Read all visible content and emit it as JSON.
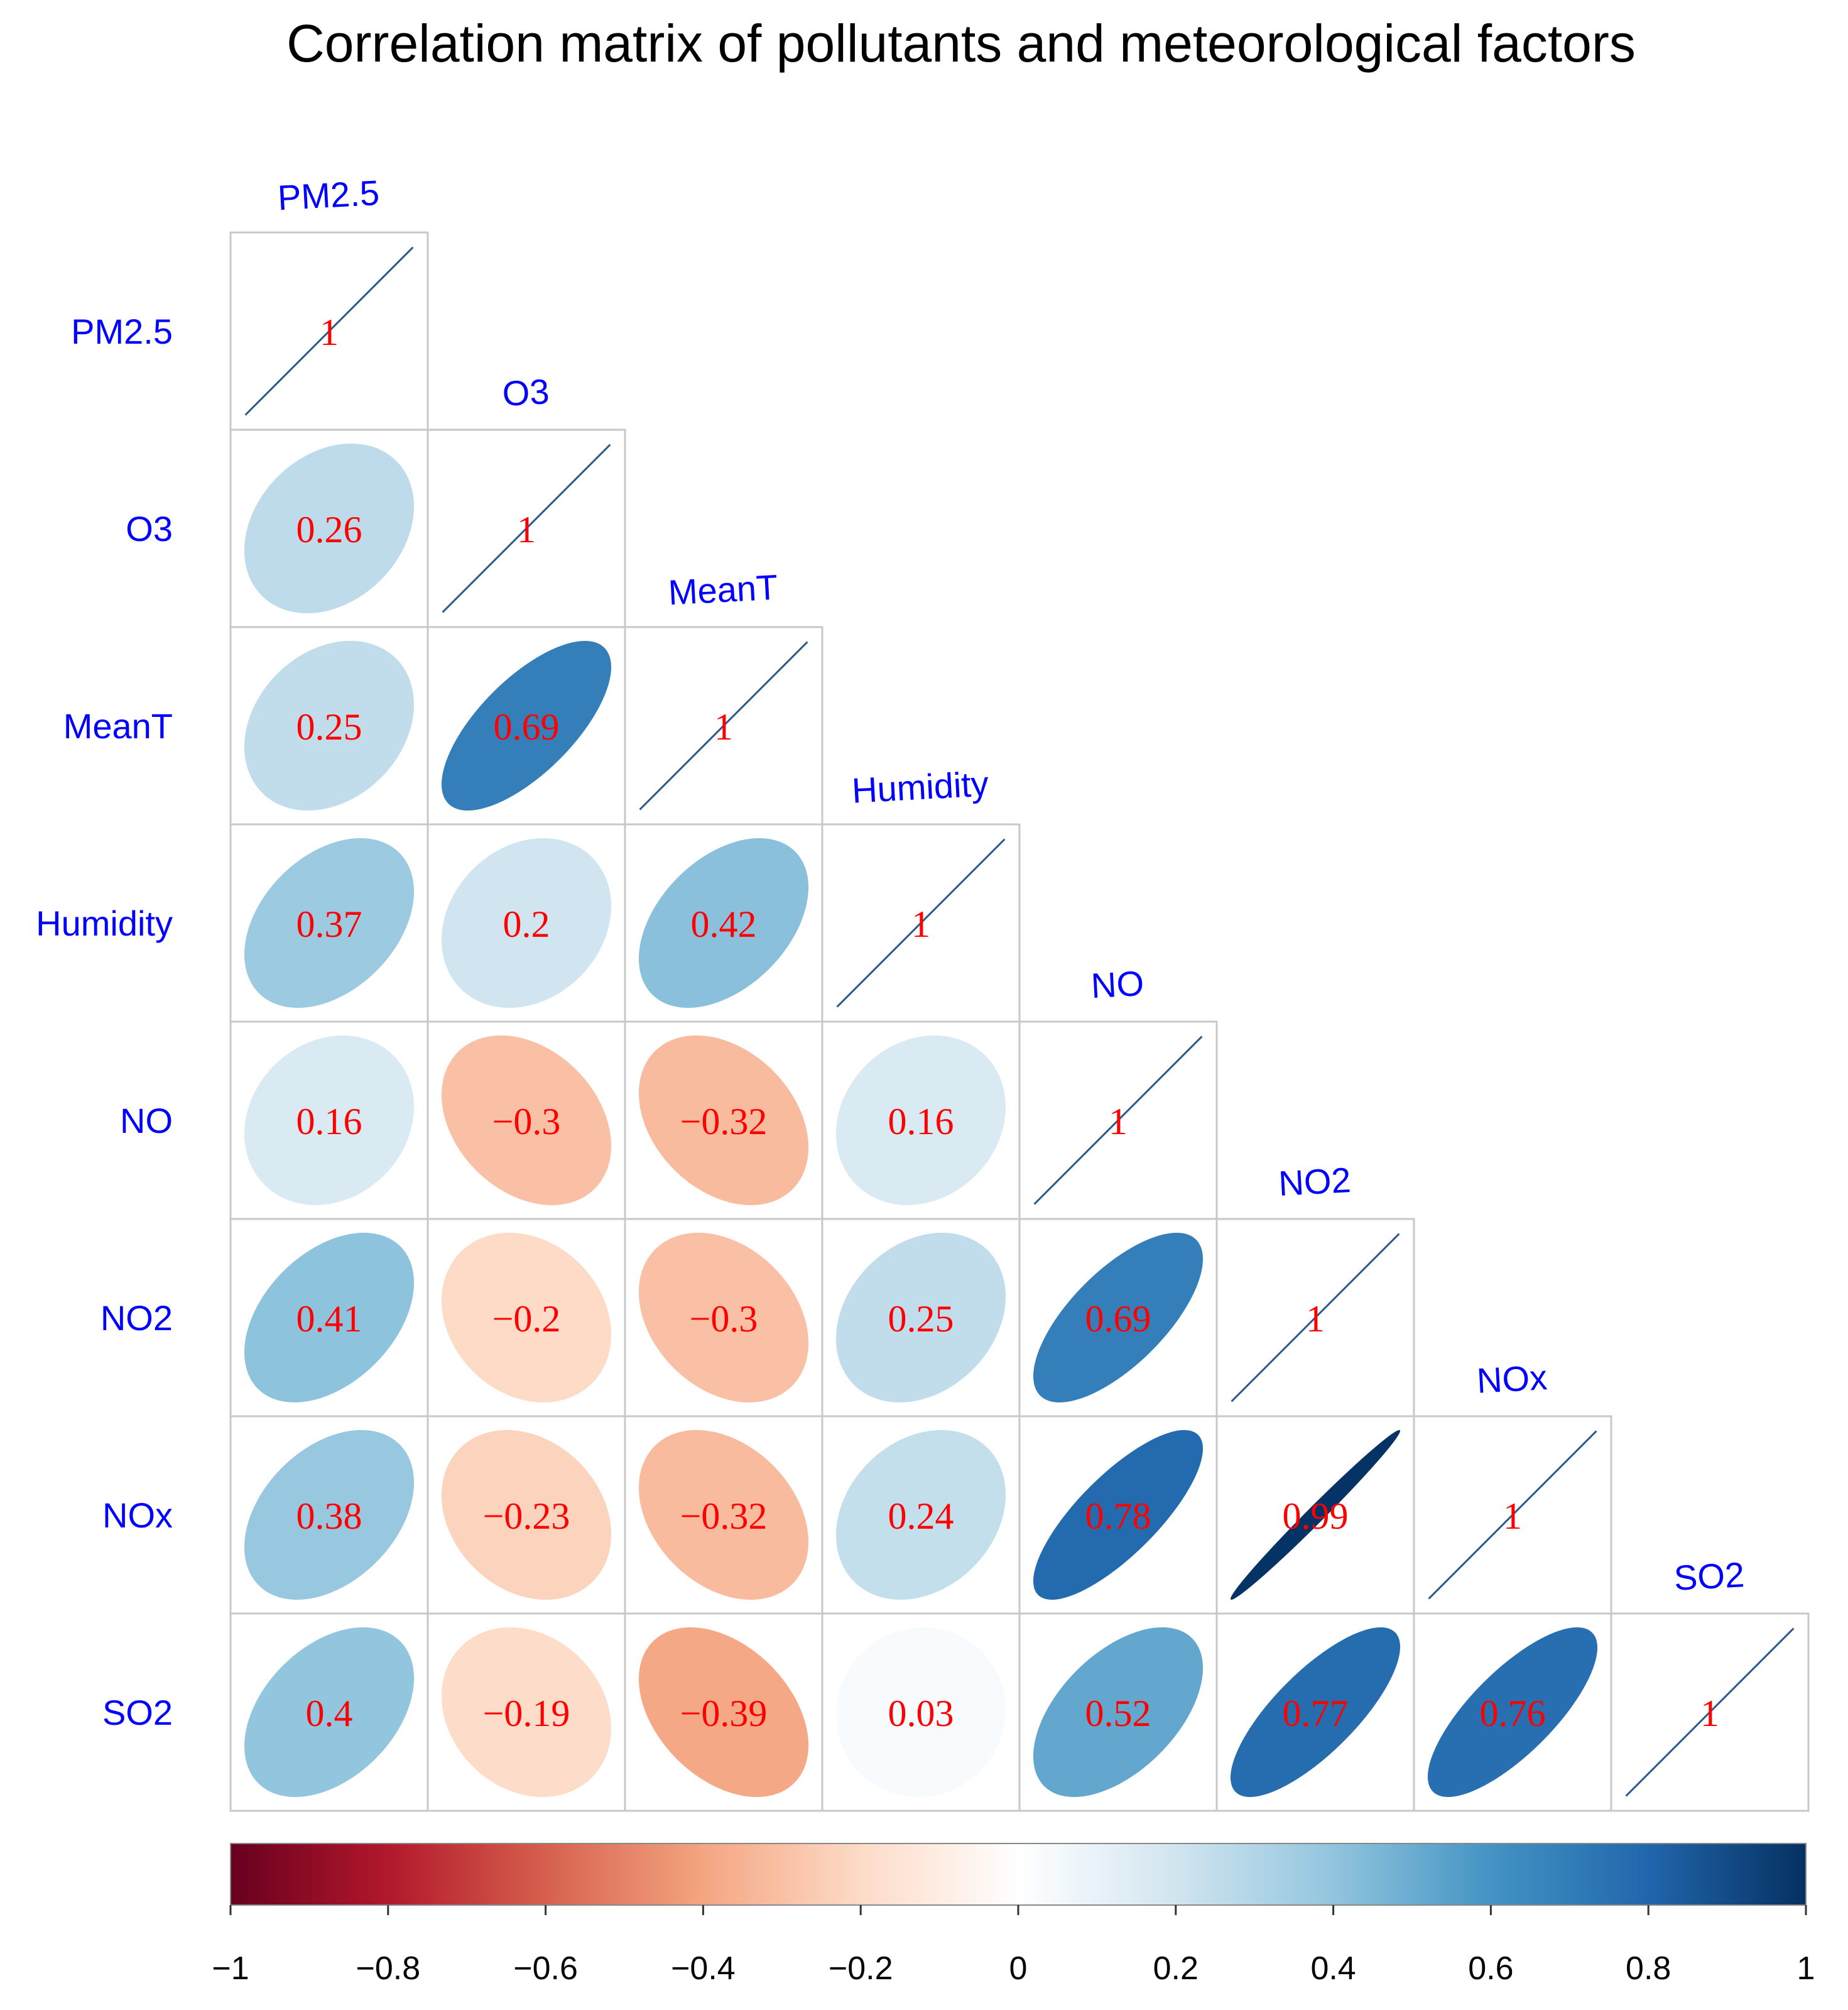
{
  "chart_data": {
    "type": "heatmap",
    "subtype": "correlation-matrix-ellipse-lower-triangle",
    "title": "Correlation matrix of pollutants and meteorological factors",
    "variables": [
      "PM2.5",
      "O3",
      "MeanT",
      "Humidity",
      "NO",
      "NO2",
      "NOx",
      "SO2"
    ],
    "matrix": [
      [
        1,
        0.26,
        0.25,
        0.37,
        0.16,
        0.41,
        0.38,
        0.4
      ],
      [
        0.26,
        1,
        0.69,
        0.2,
        -0.3,
        -0.2,
        -0.23,
        -0.19
      ],
      [
        0.25,
        0.69,
        1,
        0.42,
        -0.32,
        -0.3,
        -0.32,
        -0.39
      ],
      [
        0.37,
        0.2,
        0.42,
        1,
        0.16,
        0.25,
        0.24,
        0.03
      ],
      [
        0.16,
        -0.3,
        -0.32,
        0.16,
        1,
        0.69,
        0.78,
        0.52
      ],
      [
        0.41,
        -0.2,
        -0.3,
        0.25,
        0.69,
        1,
        0.99,
        0.77
      ],
      [
        0.38,
        -0.23,
        -0.32,
        0.24,
        0.78,
        0.99,
        1,
        0.76
      ],
      [
        0.4,
        -0.19,
        -0.39,
        0.03,
        0.52,
        0.77,
        0.76,
        1
      ]
    ],
    "colorbar": {
      "range": [
        -1,
        1
      ],
      "ticks": [
        -1,
        -0.8,
        -0.6,
        -0.4,
        -0.2,
        0,
        0.2,
        0.4,
        0.6,
        0.8,
        1
      ],
      "tick_labels": [
        "−1",
        "−0.8",
        "−0.6",
        "−0.4",
        "−0.2",
        "0",
        "0.2",
        "0.4",
        "0.6",
        "0.8",
        "1"
      ],
      "colors": [
        "#67001f",
        "#b2182b",
        "#d6604d",
        "#f4a582",
        "#fddbc7",
        "#ffffff",
        "#d1e5f0",
        "#92c5de",
        "#4393c3",
        "#2166ac",
        "#053061"
      ],
      "placement": "bottom"
    },
    "colors": {
      "variable_label": "#0000ff",
      "coefficient_label": "#ff0000",
      "grid": "#c8c8c8"
    }
  }
}
